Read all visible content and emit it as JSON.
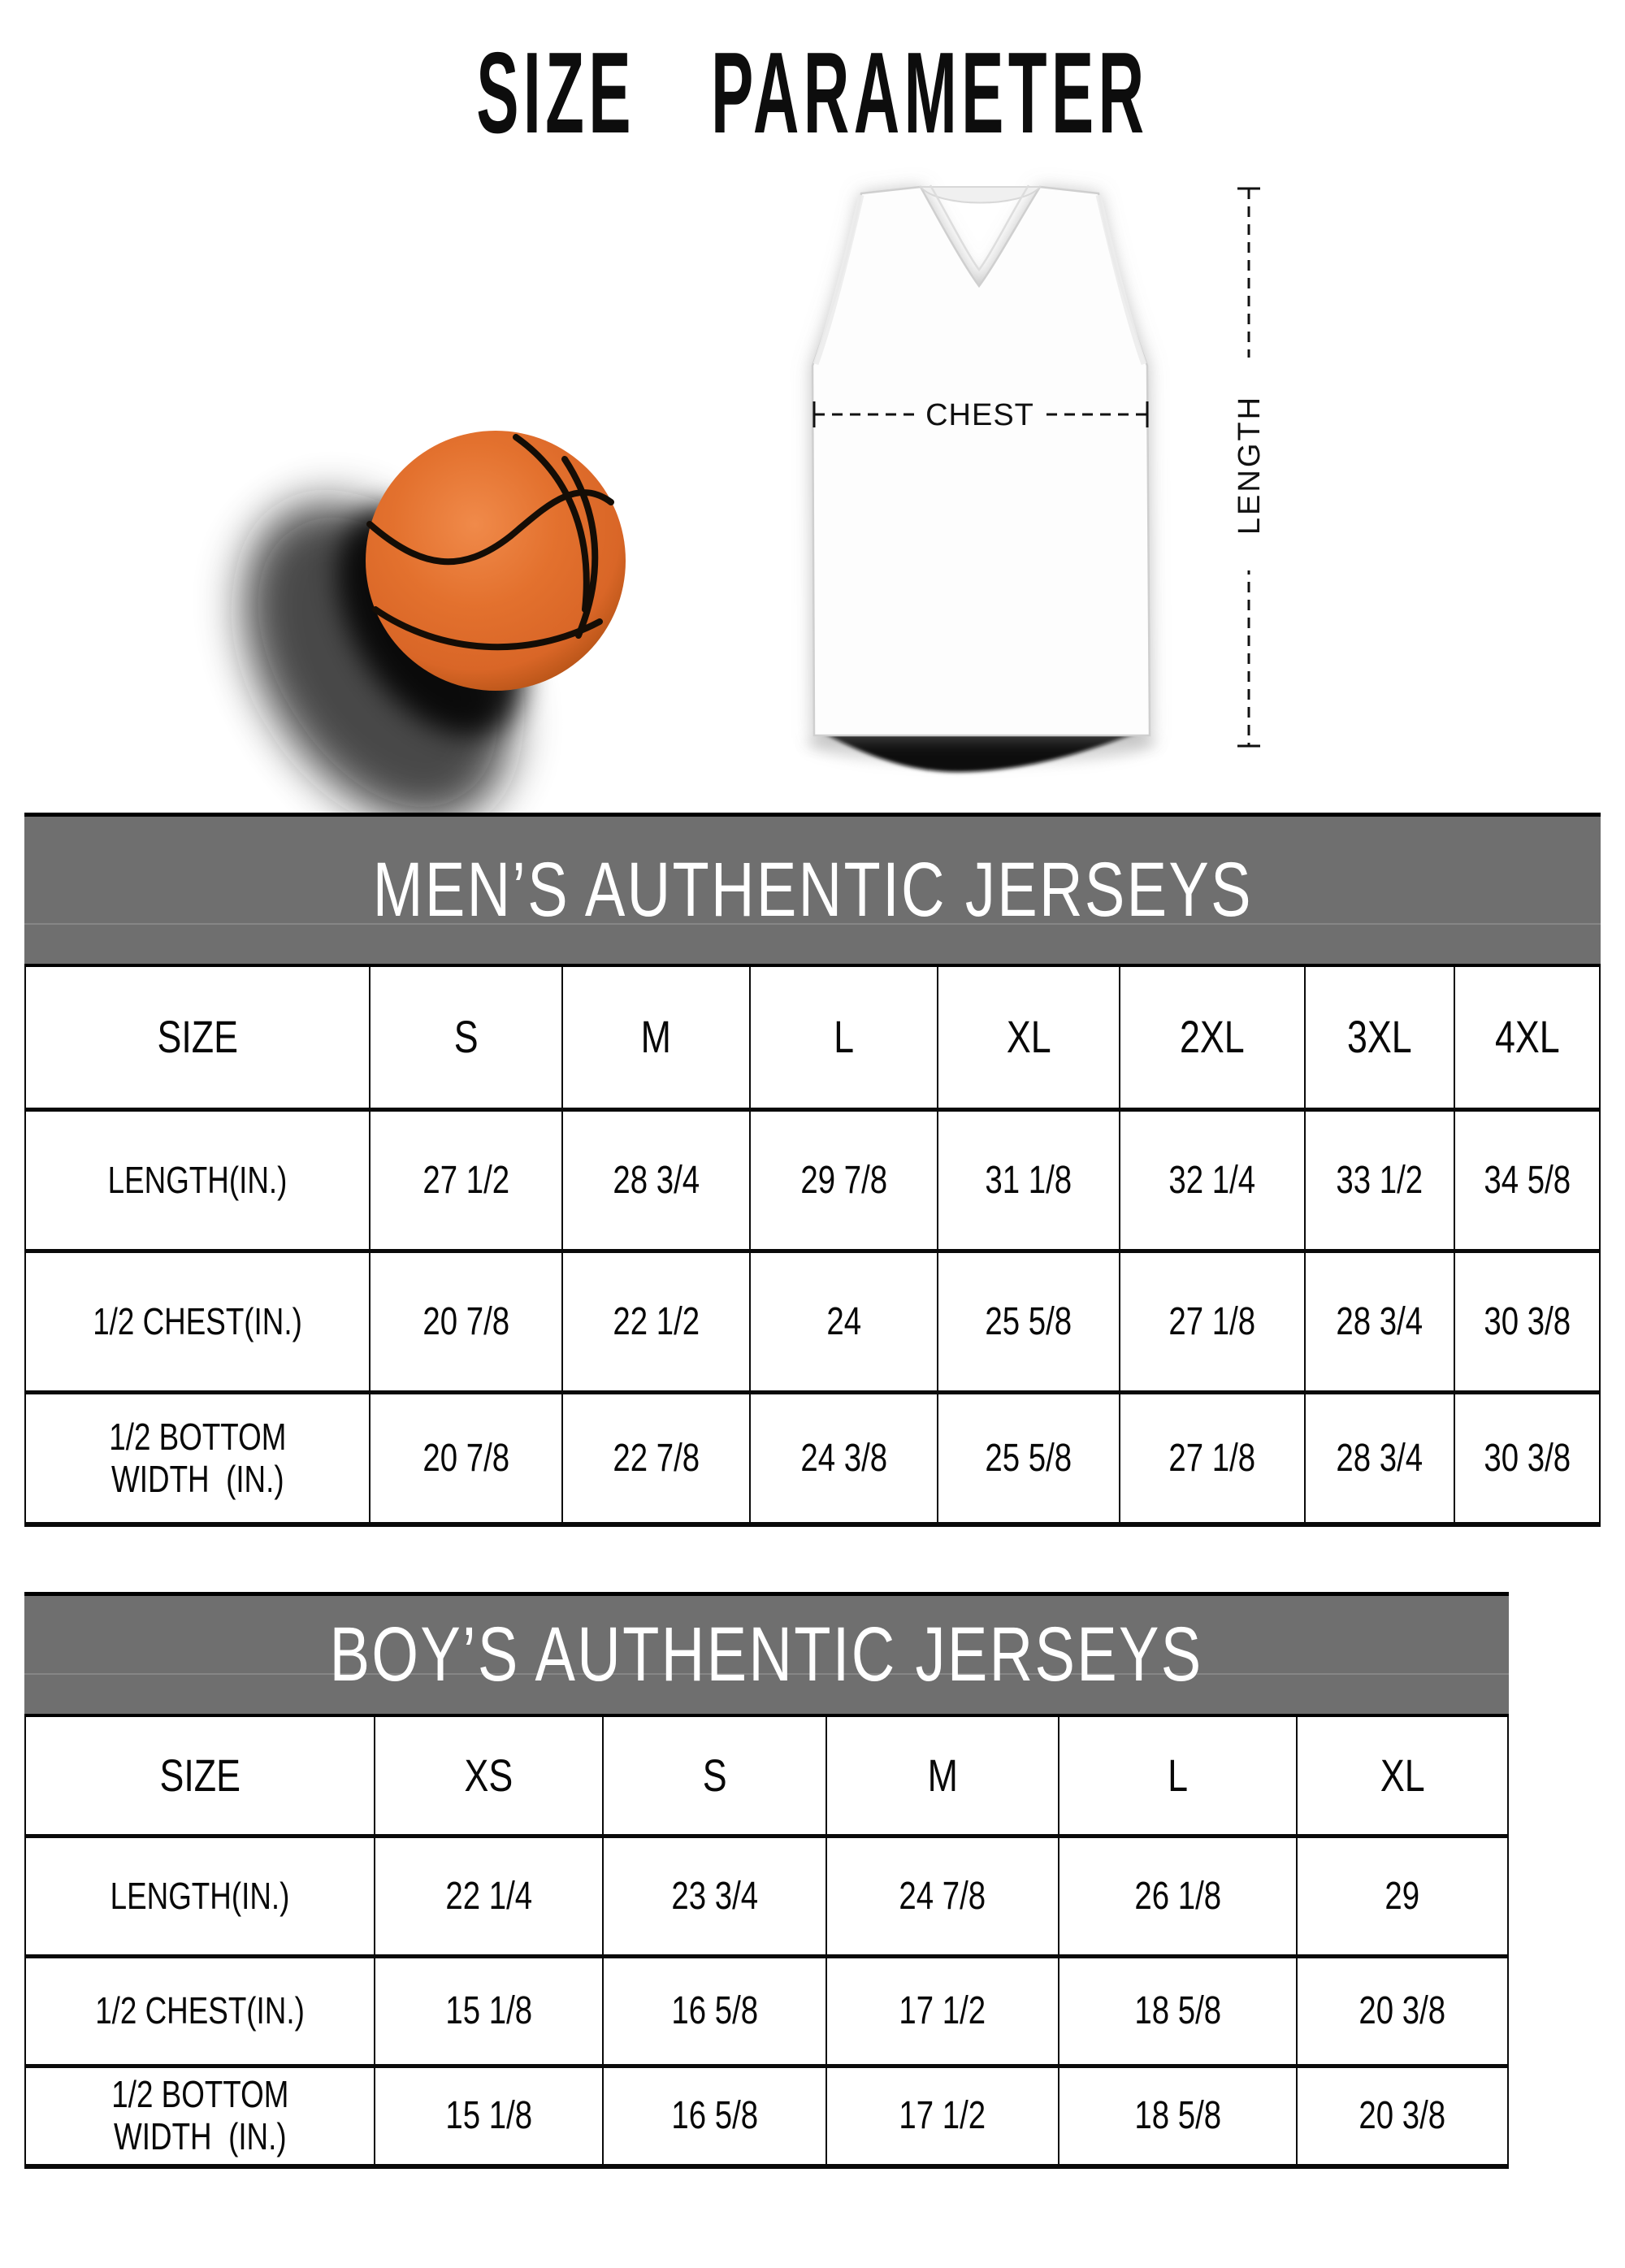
{
  "title": "SIZE PARAMETER",
  "figure": {
    "chest_label": "CHEST",
    "length_label": "LENGTH",
    "icons": [
      "basketball-icon",
      "jersey-front-icon"
    ]
  },
  "colors": {
    "header_band": "#6f6f6f",
    "basketball_orange": "#e3712e",
    "table_line": "#0a0a0a"
  },
  "mens_table": {
    "header": "MEN’S AUTHENTIC JERSEYS",
    "columns": [
      "SIZE",
      "S",
      "M",
      "L",
      "XL",
      "2XL",
      "3XL",
      "4XL"
    ],
    "rows": [
      {
        "label": "LENGTH(IN.)",
        "values": [
          "27 1/2",
          "28 3/4",
          "29 7/8",
          "31 1/8",
          "32 1/4",
          "33 1/2",
          "34 5/8"
        ]
      },
      {
        "label": "1/2 CHEST(IN.)",
        "values": [
          "20 7/8",
          "22 1/2",
          "24",
          "25 5/8",
          "27 1/8",
          "28 3/4",
          "30 3/8"
        ]
      },
      {
        "label": "1/2 BOTTOM\nWIDTH  (IN.)",
        "values": [
          "20 7/8",
          "22 7/8",
          "24 3/8",
          "25 5/8",
          "27 1/8",
          "28 3/4",
          "30 3/8"
        ]
      }
    ]
  },
  "boys_table": {
    "header": "BOY’S AUTHENTIC JERSEYS",
    "columns": [
      "SIZE",
      "XS",
      "S",
      "M",
      "L",
      "XL"
    ],
    "rows": [
      {
        "label": "LENGTH(IN.)",
        "values": [
          "22 1/4",
          "23 3/4",
          "24 7/8",
          "26 1/8",
          "29"
        ]
      },
      {
        "label": "1/2 CHEST(IN.)",
        "values": [
          "15 1/8",
          "16 5/8",
          "17 1/2",
          "18 5/8",
          "20 3/8"
        ]
      },
      {
        "label": "1/2 BOTTOM\nWIDTH  (IN.)",
        "values": [
          "15 1/8",
          "16 5/8",
          "17 1/2",
          "18 5/8",
          "20 3/8"
        ]
      }
    ]
  }
}
